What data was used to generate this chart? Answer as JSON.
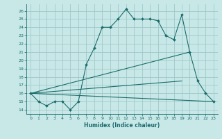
{
  "xlabel": "Humidex (Indice chaleur)",
  "background_color": "#c8e8e8",
  "grid_color": "#a0c8c8",
  "line_color": "#1a6b6b",
  "xlim": [
    -0.5,
    23.5
  ],
  "ylim": [
    13.5,
    26.8
  ],
  "xticks": [
    0,
    1,
    2,
    3,
    4,
    5,
    6,
    7,
    8,
    9,
    10,
    11,
    12,
    13,
    14,
    15,
    16,
    17,
    18,
    19,
    20,
    21,
    22,
    23
  ],
  "yticks": [
    14,
    15,
    16,
    17,
    18,
    19,
    20,
    21,
    22,
    23,
    24,
    25,
    26
  ],
  "series_main": {
    "x": [
      0,
      1,
      2,
      3,
      4,
      5,
      6,
      7,
      8,
      9,
      10,
      11,
      12,
      13,
      14,
      15,
      16,
      17,
      18,
      19,
      20,
      21,
      22,
      23
    ],
    "y": [
      16,
      15,
      14.5,
      15,
      15,
      14,
      15,
      19.5,
      21.5,
      24,
      24,
      25,
      26.2,
      25,
      25,
      25,
      24.8,
      23,
      22.5,
      25.5,
      21,
      17.5,
      16,
      15
    ]
  },
  "series_flat": {
    "x": [
      0,
      23
    ],
    "y": [
      16,
      15
    ]
  },
  "series_low": {
    "x": [
      0,
      19
    ],
    "y": [
      16,
      17.5
    ]
  },
  "series_high": {
    "x": [
      0,
      20
    ],
    "y": [
      16,
      21
    ]
  }
}
